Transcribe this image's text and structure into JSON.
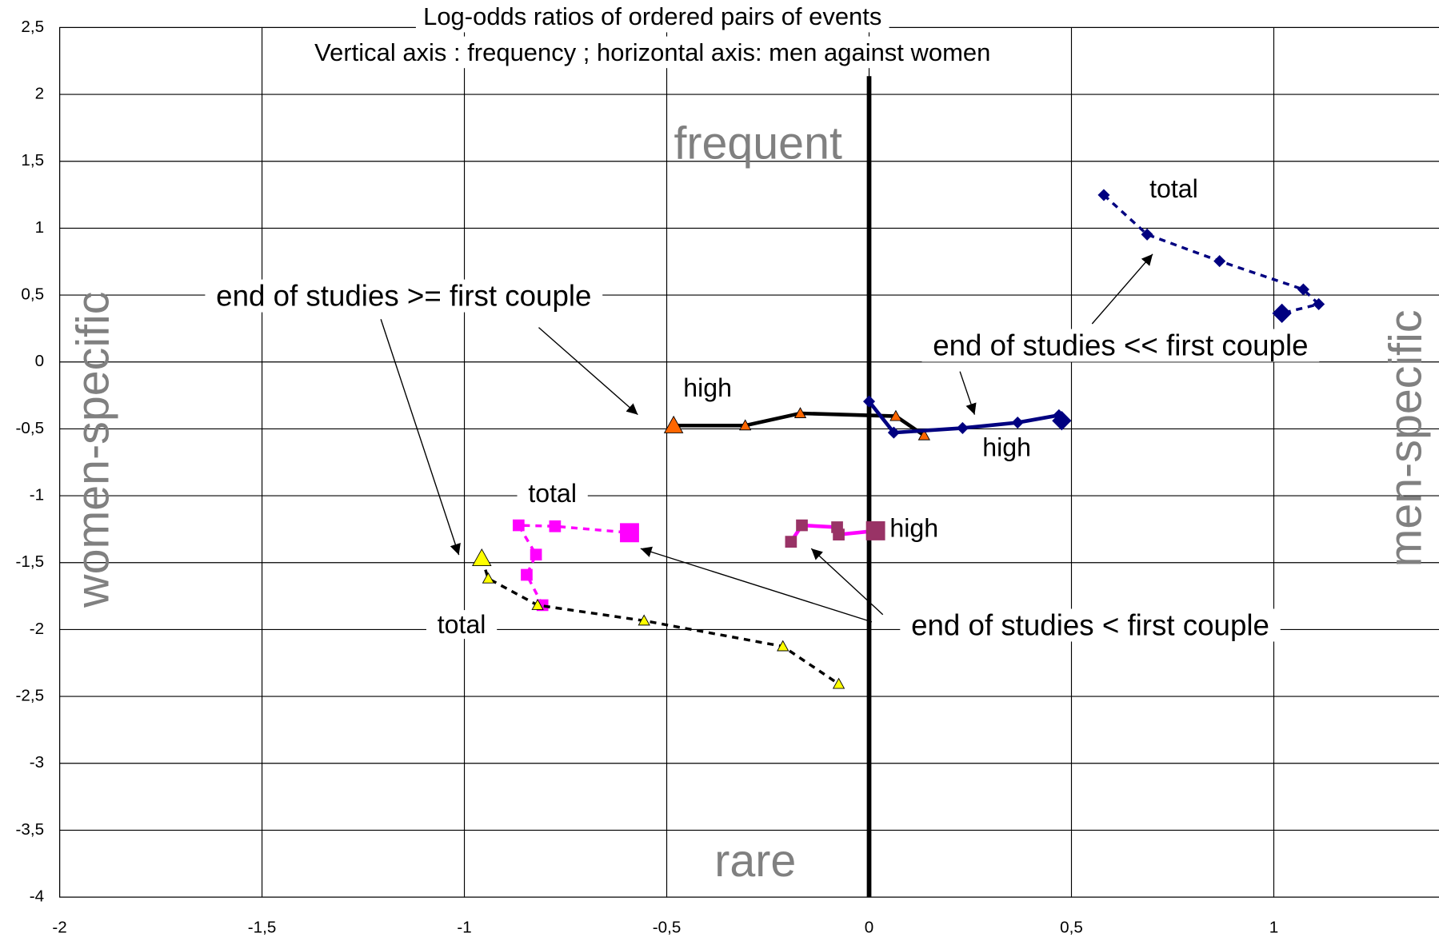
{
  "chart_data": {
    "type": "line",
    "title": "Log-odds ratios of ordered pairs of events",
    "subtitle": "Vertical axis : frequency ; horizontal axis: men against women",
    "xlim": [
      -2,
      1.4
    ],
    "ylim": [
      -4,
      2.5
    ],
    "xticks": [
      {
        "value": -2,
        "label": "-2"
      },
      {
        "value": -1.5,
        "label": "-1,5"
      },
      {
        "value": -1,
        "label": "-1"
      },
      {
        "value": -0.5,
        "label": "-0,5"
      },
      {
        "value": 0,
        "label": "0"
      },
      {
        "value": 0.5,
        "label": "0,5"
      },
      {
        "value": 1,
        "label": "1"
      }
    ],
    "yticks": [
      {
        "value": 2.5,
        "label": "2,5"
      },
      {
        "value": 2,
        "label": "2"
      },
      {
        "value": 1.5,
        "label": "1,5"
      },
      {
        "value": 1,
        "label": "1"
      },
      {
        "value": 0.5,
        "label": "0,5"
      },
      {
        "value": 0,
        "label": "0"
      },
      {
        "value": -0.5,
        "label": "-0,5"
      },
      {
        "value": -1,
        "label": "-1"
      },
      {
        "value": -1.5,
        "label": "-1,5"
      },
      {
        "value": -2,
        "label": "-2"
      },
      {
        "value": -2.5,
        "label": "-2,5"
      },
      {
        "value": -3,
        "label": "-3"
      },
      {
        "value": -3.5,
        "label": "-3,5"
      },
      {
        "value": -4,
        "label": "-4"
      }
    ],
    "grid": true,
    "series": [
      {
        "color": "#000000",
        "marker_color": "#ff6600",
        "marker": "triangle",
        "dashed": false,
        "x": [
          -0.483,
          -0.306,
          -0.17,
          0.066,
          0.136
        ],
        "values": [
          -0.475,
          -0.475,
          -0.384,
          -0.405,
          -0.549
        ]
      },
      {
        "color": "#000080",
        "marker_color": "#000080",
        "marker": "diamond",
        "dashed": false,
        "x": [
          0,
          0.061,
          0.231,
          0.367,
          0.469,
          0.476
        ],
        "values": [
          -0.295,
          -0.528,
          -0.494,
          -0.453,
          -0.398,
          -0.439
        ]
      },
      {
        "color": "#000080",
        "marker_color": "#000080",
        "marker": "diamond",
        "dashed": true,
        "x": [
          0.58,
          0.687,
          0.866,
          1.073,
          1.111,
          1.02
        ],
        "values": [
          1.248,
          0.953,
          0.754,
          0.542,
          0.432,
          0.364
        ]
      },
      {
        "color": "#ff00ff",
        "marker_color": "#993366",
        "marker": "square",
        "dashed": false,
        "x": [
          -0.193,
          -0.166,
          -0.079,
          -0.075,
          0.016
        ],
        "values": [
          -1.344,
          -1.221,
          -1.235,
          -1.29,
          -1.262
        ]
      },
      {
        "color": "#ff00ff",
        "marker_color": "#ff00ff",
        "marker": "square",
        "dashed": true,
        "x": [
          -0.807,
          -0.846,
          -0.823,
          -0.866,
          -0.776,
          -0.592
        ],
        "values": [
          -1.818,
          -1.591,
          -1.44,
          -1.221,
          -1.228,
          -1.276
        ]
      },
      {
        "color": "#000000",
        "marker_color": "#ffff00",
        "marker": "triangle",
        "dashed": true,
        "x": [
          -0.957,
          -0.941,
          -0.819,
          -0.556,
          -0.213,
          -0.075
        ],
        "values": [
          -1.468,
          -1.619,
          -1.818,
          -1.934,
          -2.126,
          -2.407
        ]
      }
    ],
    "annotations": [
      "frequent",
      "rare",
      "women-specific",
      "men-specific",
      "end of studies >= first couple",
      "end of studies << first couple",
      "end of studies < first couple",
      "high",
      "high",
      "high",
      "total",
      "total",
      "total"
    ]
  }
}
